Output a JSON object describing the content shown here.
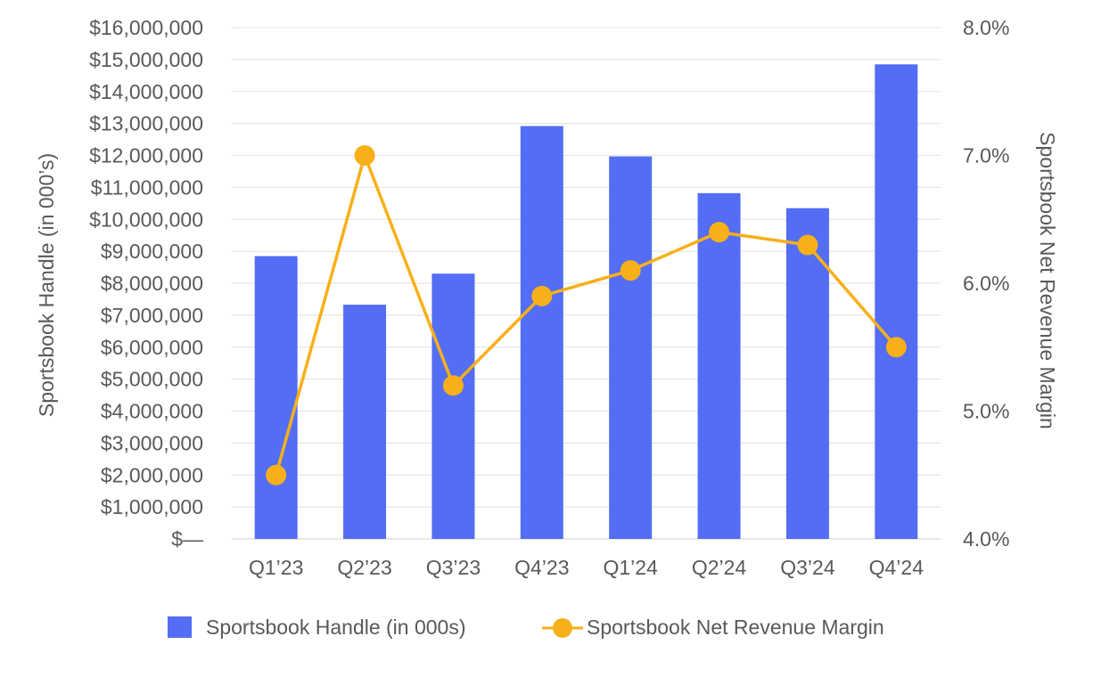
{
  "chart_data": {
    "type": "bar+line",
    "categories": [
      "Q1’23",
      "Q2’23",
      "Q3’23",
      "Q4’23",
      "Q1’24",
      "Q2’24",
      "Q3’24",
      "Q4’24"
    ],
    "series": [
      {
        "name": "Sportsbook Handle (in 000s)",
        "type": "bar",
        "axis": "left",
        "color": "#536DF4",
        "values": [
          8850000,
          7330000,
          8300000,
          12920000,
          11970000,
          10820000,
          10350000,
          14850000
        ]
      },
      {
        "name": "Sportsbook Net Revenue Margin",
        "type": "line",
        "axis": "right",
        "color": "#F7B019",
        "values": [
          4.5,
          7.0,
          5.2,
          5.9,
          6.1,
          6.4,
          6.3,
          5.5
        ]
      }
    ],
    "y_left": {
      "label": "Sportsbook Handle (in 000’s)",
      "min": 0,
      "max": 16000000,
      "ticks": [
        "$16,000,000",
        "$15,000,000",
        "$14,000,000",
        "$13,000,000",
        "$12,000,000",
        "$11,000,000",
        "$10,000,000",
        "$9,000,000",
        "$8,000,000",
        "$7,000,000",
        "$6,000,000",
        "$5,000,000",
        "$4,000,000",
        "$3,000,000",
        "$2,000,000",
        "$1,000,000",
        "$—"
      ]
    },
    "y_right": {
      "label": "Sportsbook Net Revenue Margin",
      "min": 4.0,
      "max": 8.0,
      "ticks": [
        "8.0%",
        "7.0%",
        "6.0%",
        "5.0%",
        "4.0%"
      ]
    },
    "grid": true,
    "legend": "bottom"
  }
}
